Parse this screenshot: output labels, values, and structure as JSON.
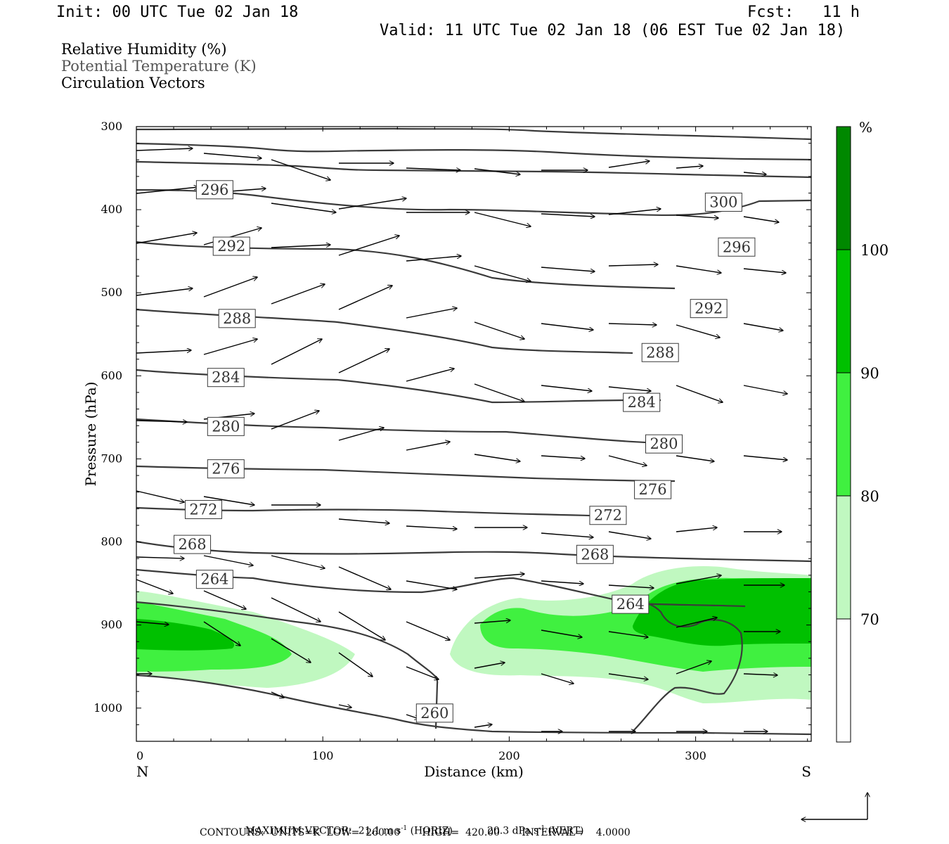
{
  "header": {
    "init": "Init: 00 UTC Tue 02 Jan 18",
    "fcst_label": "Fcst:",
    "fcst_value": "11 h",
    "valid": "Valid: 11 UTC Tue 02 Jan 18 (06 EST Tue 02 Jan 18)"
  },
  "legend_lines": {
    "rh": "Relative Humidity (%)",
    "theta": "Potential Temperature (K)",
    "vectors": "Circulation Vectors"
  },
  "footer": {
    "max_vector_label": "MAXIMUM VECTOR:",
    "horiz": "21.1 m s",
    "horiz_sup": "-1",
    "horiz_tag": "(HORIZ)",
    "vert": "20.3 dPa s",
    "vert_sup": "-1",
    "vert_tag": "(VERT)",
    "contours": "CONTOURS:  UNITS=K  LOW=  260.00       HIGH=  420.00       INTERVAL=    4.0000"
  },
  "colors": {
    "rh70": "#c0f8c0",
    "rh80": "#40f040",
    "rh90": "#00c000",
    "rh100": "#008800",
    "contour": "#3a3a3a"
  },
  "chart_data": {
    "type": "cross-section",
    "xlabel": "Distance (km)",
    "ylabel": "Pressure (hPa)",
    "xlim": [
      0,
      362
    ],
    "ylim": [
      1040,
      300
    ],
    "x_ticks": [
      0,
      100,
      200,
      300
    ],
    "y_ticks": [
      300,
      400,
      500,
      600,
      700,
      800,
      900,
      1000
    ],
    "x_end_labels": {
      "left": "N",
      "right": "S"
    },
    "colorbar": {
      "unit": "%",
      "levels": [
        70,
        80,
        90,
        100
      ],
      "colors": [
        "#ffffff",
        "#c0f8c0",
        "#40f040",
        "#00c000",
        "#008800"
      ]
    },
    "contour_labels": [
      {
        "value": "296",
        "x": 42,
        "p": 376
      },
      {
        "value": "300",
        "x": 315,
        "p": 391
      },
      {
        "value": "292",
        "x": 51,
        "p": 444
      },
      {
        "value": "296",
        "x": 322,
        "p": 445
      },
      {
        "value": "288",
        "x": 54,
        "p": 531
      },
      {
        "value": "292",
        "x": 307,
        "p": 519
      },
      {
        "value": "288",
        "x": 281,
        "p": 572
      },
      {
        "value": "284",
        "x": 48,
        "p": 602
      },
      {
        "value": "284",
        "x": 271,
        "p": 632
      },
      {
        "value": "280",
        "x": 48,
        "p": 661
      },
      {
        "value": "280",
        "x": 283,
        "p": 682
      },
      {
        "value": "276",
        "x": 48,
        "p": 712
      },
      {
        "value": "276",
        "x": 277,
        "p": 737
      },
      {
        "value": "272",
        "x": 36,
        "p": 761
      },
      {
        "value": "272",
        "x": 253,
        "p": 768
      },
      {
        "value": "268",
        "x": 30,
        "p": 803
      },
      {
        "value": "268",
        "x": 246,
        "p": 815
      },
      {
        "value": "264",
        "x": 42,
        "p": 845
      },
      {
        "value": "264",
        "x": 265,
        "p": 875
      },
      {
        "value": "260",
        "x": 160,
        "p": 1006
      }
    ]
  }
}
